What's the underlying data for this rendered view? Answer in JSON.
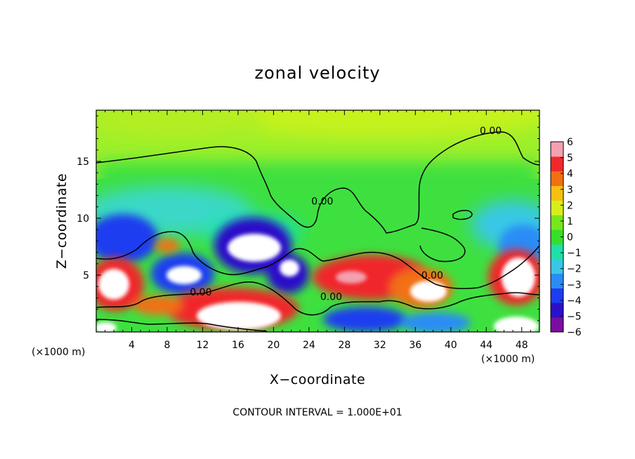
{
  "chart_data": {
    "type": "heatmap",
    "title": "zonal velocity",
    "xlabel": "X−coordinate",
    "ylabel": "Z−coordinate",
    "x_unit_left": "(×1000 m)",
    "x_unit_right": "(×1000 m)",
    "xlim": [
      0,
      50
    ],
    "ylim": [
      0,
      19.5
    ],
    "xticks": [
      4,
      8,
      12,
      16,
      20,
      24,
      28,
      32,
      36,
      40,
      44,
      48
    ],
    "xtick_labels": [
      "4",
      "8",
      "12",
      "16",
      "20",
      "24",
      "28",
      "32",
      "36",
      "40",
      "44",
      "48"
    ],
    "yticks": [
      5,
      10,
      15
    ],
    "ytick_labels": [
      "5",
      "10",
      "15"
    ],
    "colorbar": {
      "min": -6,
      "max": 6,
      "ticks": [
        6,
        5,
        4,
        3,
        2,
        1,
        0,
        -1,
        -2,
        -3,
        -4,
        -5,
        -6
      ],
      "tick_labels": [
        "6",
        "5",
        "4",
        "3",
        "2",
        "1",
        "0",
        "−1",
        "−2",
        "−3",
        "−4",
        "−5",
        "−6"
      ],
      "colors": [
        "#7a0ea0",
        "#2a10c8",
        "#1e3cf0",
        "#2a8cf6",
        "#38c8e6",
        "#1ee0a8",
        "#34e02a",
        "#78e61e",
        "#d8ee1a",
        "#f6c010",
        "#f27012",
        "#f0282c",
        "#f4a0b0"
      ]
    },
    "contour_labels": [
      {
        "text": "0.00",
        "x": 44.5,
        "y": 17.4
      },
      {
        "text": "0.00",
        "x": 25.5,
        "y": 11.2
      },
      {
        "text": "0.00",
        "x": 11.8,
        "y": 3.2
      },
      {
        "text": "0.00",
        "x": 26.5,
        "y": 2.8
      },
      {
        "text": "0.00",
        "x": 37.9,
        "y": 4.7
      }
    ],
    "annotation": "CONTOUR INTERVAL = 1.000E+01"
  }
}
